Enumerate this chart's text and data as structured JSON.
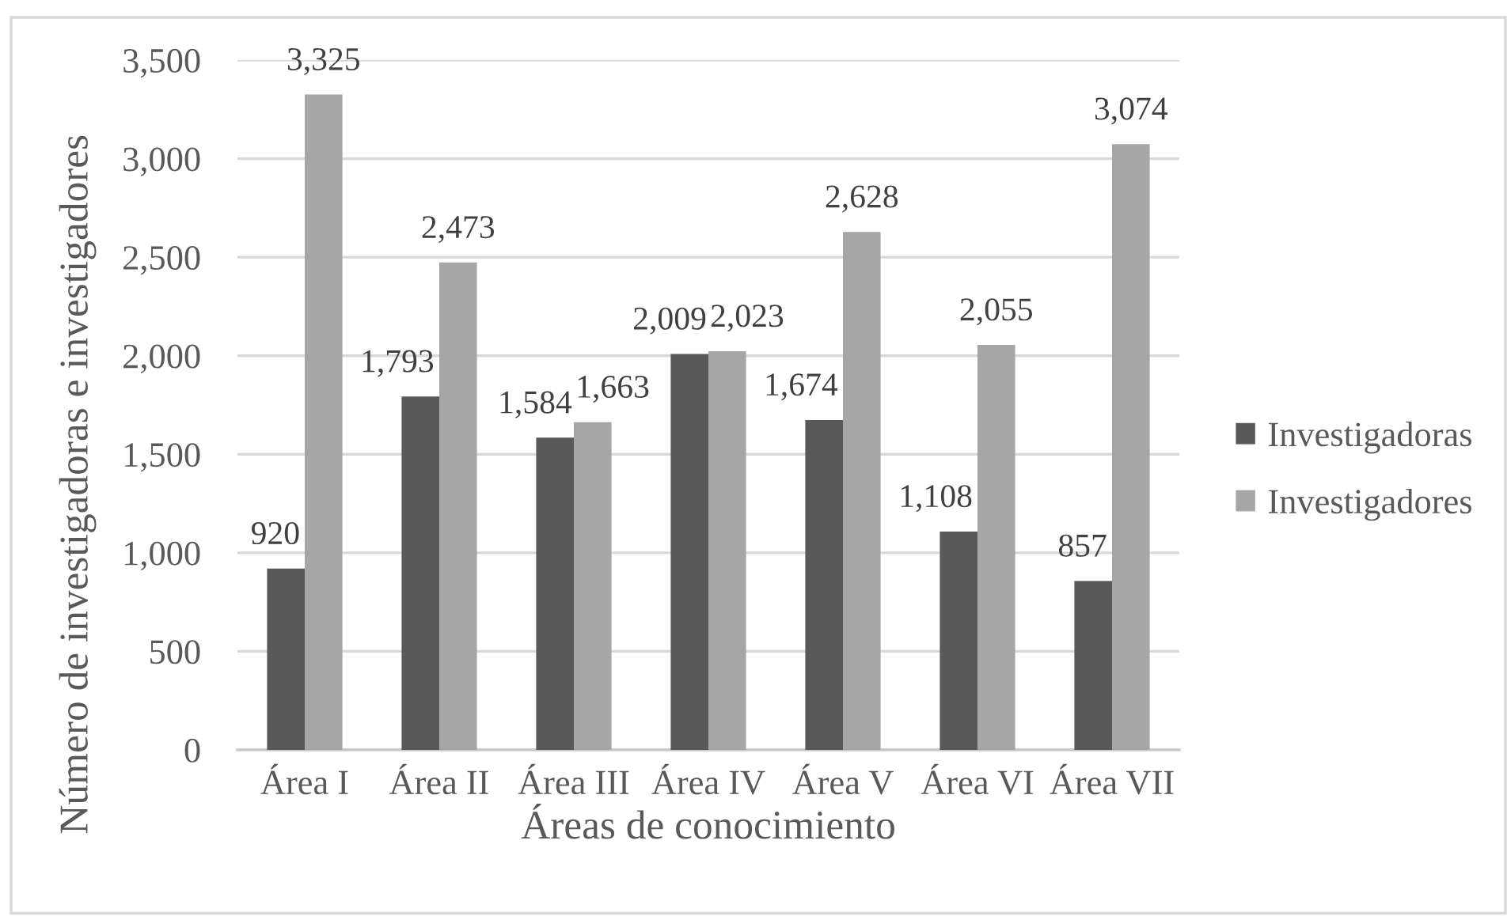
{
  "chart_data": {
    "type": "bar",
    "xlabel": "Áreas de conocimiento",
    "ylabel": "Número de investigadoras e investigadores",
    "categories": [
      "Área I",
      "Área II",
      "Área III",
      "Área IV",
      "Área V",
      "Área VI",
      "Área VII"
    ],
    "series": [
      {
        "name": "Investigadoras",
        "color": "#595959",
        "values": [
          920,
          1793,
          1584,
          2009,
          1674,
          1108,
          857
        ],
        "value_labels": [
          "920",
          "1,793",
          "1,584",
          "2,009",
          "1,674",
          "1,108",
          "857"
        ]
      },
      {
        "name": "Investigadores",
        "color": "#a6a6a6",
        "values": [
          3325,
          2473,
          1663,
          2023,
          2628,
          2055,
          3074
        ],
        "value_labels": [
          "3,325",
          "2,473",
          "1,663",
          "2,023",
          "2,628",
          "2,055",
          "3,074"
        ]
      }
    ],
    "ylim": [
      0,
      3500
    ],
    "yticks": [
      {
        "value": 0,
        "label": "0"
      },
      {
        "value": 500,
        "label": "500"
      },
      {
        "value": 1000,
        "label": "1,000"
      },
      {
        "value": 1500,
        "label": "1,500"
      },
      {
        "value": 2000,
        "label": "2,000"
      },
      {
        "value": 2500,
        "label": "2,500"
      },
      {
        "value": 3000,
        "label": "3,000"
      },
      {
        "value": 3500,
        "label": "3,500"
      }
    ],
    "grid": "y",
    "legend": "right"
  }
}
